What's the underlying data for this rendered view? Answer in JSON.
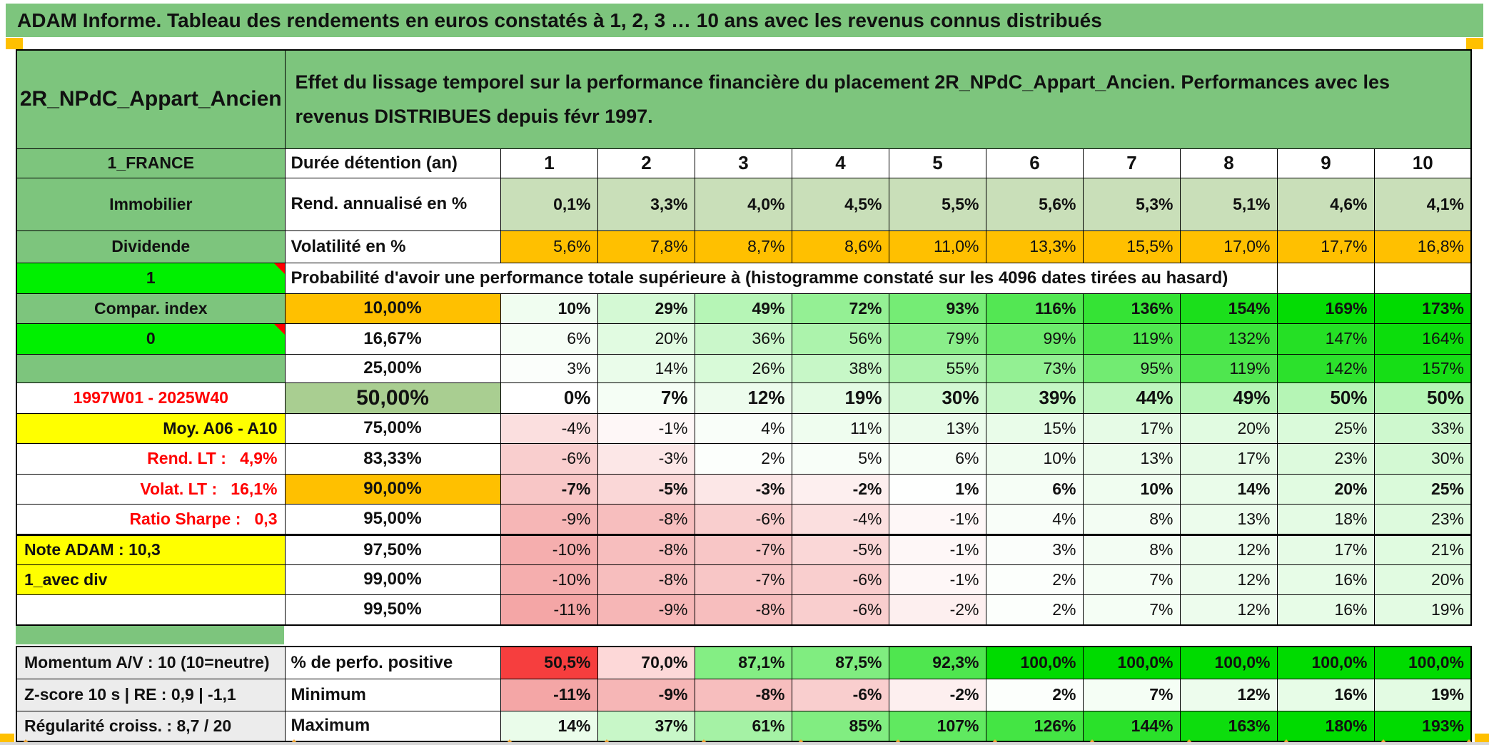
{
  "banner": {
    "title": "ADAM Informe. Tableau des rendements en euros constatés à 1, 2, 3 … 10 ans avec les revenus connus distribués"
  },
  "header": {
    "asset": "2R_NPdC_Appart_Ancien",
    "description": "Effet du lissage temporel sur la performance financière du placement 2R_NPdC_Appart_Ancien. Performances avec les revenus DISTRIBUES depuis févr 1997."
  },
  "colors": {
    "green": "#7dc57d",
    "neon": "#00f000",
    "orange": "#ffc000",
    "yellow": "#ffff00",
    "sage": "#a9ce91",
    "lightgreen": "#c9dfb9",
    "gray": "#ececec",
    "red_text": "#ff0000",
    "heat_positive": "#00db00",
    "heat_negative": "#f4a6a6",
    "heat_red": "#f63a3a"
  },
  "main_table": {
    "columns": [
      "1",
      "2",
      "3",
      "4",
      "5",
      "6",
      "7",
      "8",
      "9",
      "10"
    ],
    "rows": [
      {
        "name": "duration-header",
        "left": "1_FRANCE",
        "left_class": "green center",
        "label": "Durée détention (an)",
        "label_type": "ml",
        "values": [
          "1",
          "2",
          "3",
          "4",
          "5",
          "6",
          "7",
          "8",
          "9",
          "10"
        ],
        "values_align": "center",
        "bold": true,
        "big": true
      },
      {
        "name": "rend-annualise",
        "left": "Immobilier",
        "left_class": "green center",
        "label": "Rend. annualisé en %",
        "label_type": "ml",
        "values": [
          "0,1%",
          "3,3%",
          "4,0%",
          "4,5%",
          "5,5%",
          "5,6%",
          "5,3%",
          "5,1%",
          "4,6%",
          "4,1%"
        ],
        "fill": "lightgreen",
        "bold": true
      },
      {
        "name": "volatilite",
        "left": "Dividende",
        "left_class": "green center",
        "label": "Volatilité en %",
        "label_type": "ml",
        "values": [
          "5,6%",
          "7,8%",
          "8,7%",
          "8,6%",
          "11,0%",
          "13,3%",
          "15,5%",
          "17,0%",
          "17,7%",
          "16,8%"
        ],
        "fill": "orange"
      },
      {
        "name": "probabilite-header",
        "left": "1",
        "left_class": "neon center",
        "note": true,
        "label": "Probabilité d'avoir une performance totale supérieure à (histogramme constaté sur les 4096 dates tirées au hasard)",
        "label_type": "ml",
        "span": 9,
        "trailing_empty": 2,
        "values": []
      },
      {
        "name": "pct-10",
        "left": "Compar. index",
        "left_class": "green center",
        "label": "10,00%",
        "label_class": "orange",
        "values": [
          "10%",
          "29%",
          "49%",
          "72%",
          "93%",
          "116%",
          "136%",
          "154%",
          "169%",
          "173%"
        ],
        "heat": "main",
        "bold": true
      },
      {
        "name": "pct-16-67",
        "left": "0",
        "left_class": "neon center",
        "note": true,
        "label": "16,67%",
        "values": [
          "6%",
          "20%",
          "36%",
          "56%",
          "79%",
          "99%",
          "119%",
          "132%",
          "147%",
          "164%"
        ],
        "heat": "main"
      },
      {
        "name": "pct-25",
        "left": "",
        "left_class": "green center",
        "label": "25,00%",
        "values": [
          "3%",
          "14%",
          "26%",
          "38%",
          "55%",
          "73%",
          "95%",
          "119%",
          "142%",
          "157%"
        ],
        "heat": "main"
      },
      {
        "name": "pct-50",
        "left": "1997W01 - 2025W40",
        "left_class": "center redtxt",
        "label": "50,00%",
        "label_class": "sage big",
        "values": [
          "0%",
          "7%",
          "12%",
          "19%",
          "30%",
          "39%",
          "44%",
          "49%",
          "50%",
          "50%"
        ],
        "heat": "main",
        "bold": true,
        "big": true
      },
      {
        "name": "pct-75",
        "left": "Moy. A06 - A10",
        "left_class": "yellow right",
        "label": "75,00%",
        "values": [
          "-4%",
          "-1%",
          "4%",
          "11%",
          "13%",
          "15%",
          "17%",
          "20%",
          "25%",
          "33%"
        ],
        "heat": "main"
      },
      {
        "name": "pct-83-33",
        "left": "Rend. LT :   4,9%",
        "left_class": "right redtxt",
        "label": "83,33%",
        "values": [
          "-6%",
          "-3%",
          "2%",
          "5%",
          "6%",
          "10%",
          "13%",
          "17%",
          "23%",
          "30%"
        ],
        "heat": "main"
      },
      {
        "name": "pct-90",
        "left": "Volat. LT :   16,1%",
        "left_class": "right redtxt",
        "label": "90,00%",
        "label_class": "orange",
        "values": [
          "-7%",
          "-5%",
          "-3%",
          "-2%",
          "1%",
          "6%",
          "10%",
          "14%",
          "20%",
          "25%"
        ],
        "heat": "main",
        "bold": true
      },
      {
        "name": "pct-95",
        "left": "Ratio Sharpe :   0,3",
        "left_class": "right redtxt",
        "label": "95,00%",
        "values": [
          "-9%",
          "-8%",
          "-6%",
          "-4%",
          "-1%",
          "4%",
          "8%",
          "13%",
          "18%",
          "23%"
        ],
        "heat": "main"
      },
      {
        "name": "pct-97-50",
        "left": "Note ADAM : 10,3",
        "left_class": "yellow left",
        "label": "97,50%",
        "values": [
          "-10%",
          "-8%",
          "-7%",
          "-5%",
          "-1%",
          "3%",
          "8%",
          "12%",
          "17%",
          "21%"
        ],
        "heat": "main",
        "thick_top": true
      },
      {
        "name": "pct-99",
        "left": "1_avec div",
        "left_class": "yellow left",
        "label": "99,00%",
        "values": [
          "-10%",
          "-8%",
          "-7%",
          "-6%",
          "-1%",
          "2%",
          "7%",
          "12%",
          "16%",
          "20%"
        ],
        "heat": "main"
      },
      {
        "name": "pct-99-50",
        "left": "",
        "left_class": "left",
        "label": "99,50%",
        "values": [
          "-11%",
          "-9%",
          "-8%",
          "-6%",
          "-2%",
          "2%",
          "7%",
          "12%",
          "16%",
          "19%"
        ],
        "heat": "main"
      }
    ]
  },
  "bottom_table": {
    "rows": [
      {
        "name": "perfo-positive",
        "left": "Momentum A/V : 10 (10=neutre)",
        "left_class": "gray left",
        "label": "% de perfo. positive",
        "label_type": "ml",
        "values": [
          "50,5%",
          "70,0%",
          "87,1%",
          "87,5%",
          "92,3%",
          "100,0%",
          "100,0%",
          "100,0%",
          "100,0%",
          "100,0%"
        ],
        "heat": "perfo",
        "bold": true
      },
      {
        "name": "minimum",
        "left": "Z-score 10 s | RE : 0,9 | -1,1",
        "left_class": "gray left",
        "label": "Minimum",
        "label_type": "ml",
        "values": [
          "-11%",
          "-9%",
          "-8%",
          "-6%",
          "-2%",
          "2%",
          "7%",
          "12%",
          "16%",
          "19%"
        ],
        "heat": "main",
        "bold": true
      },
      {
        "name": "maximum",
        "left": "Régularité croiss. : 8,7 / 20",
        "left_class": "gray left",
        "label": "Maximum",
        "label_type": "ml",
        "values": [
          "14%",
          "37%",
          "61%",
          "85%",
          "107%",
          "126%",
          "144%",
          "163%",
          "180%",
          "193%"
        ],
        "heat": "main",
        "bold": true
      }
    ]
  }
}
